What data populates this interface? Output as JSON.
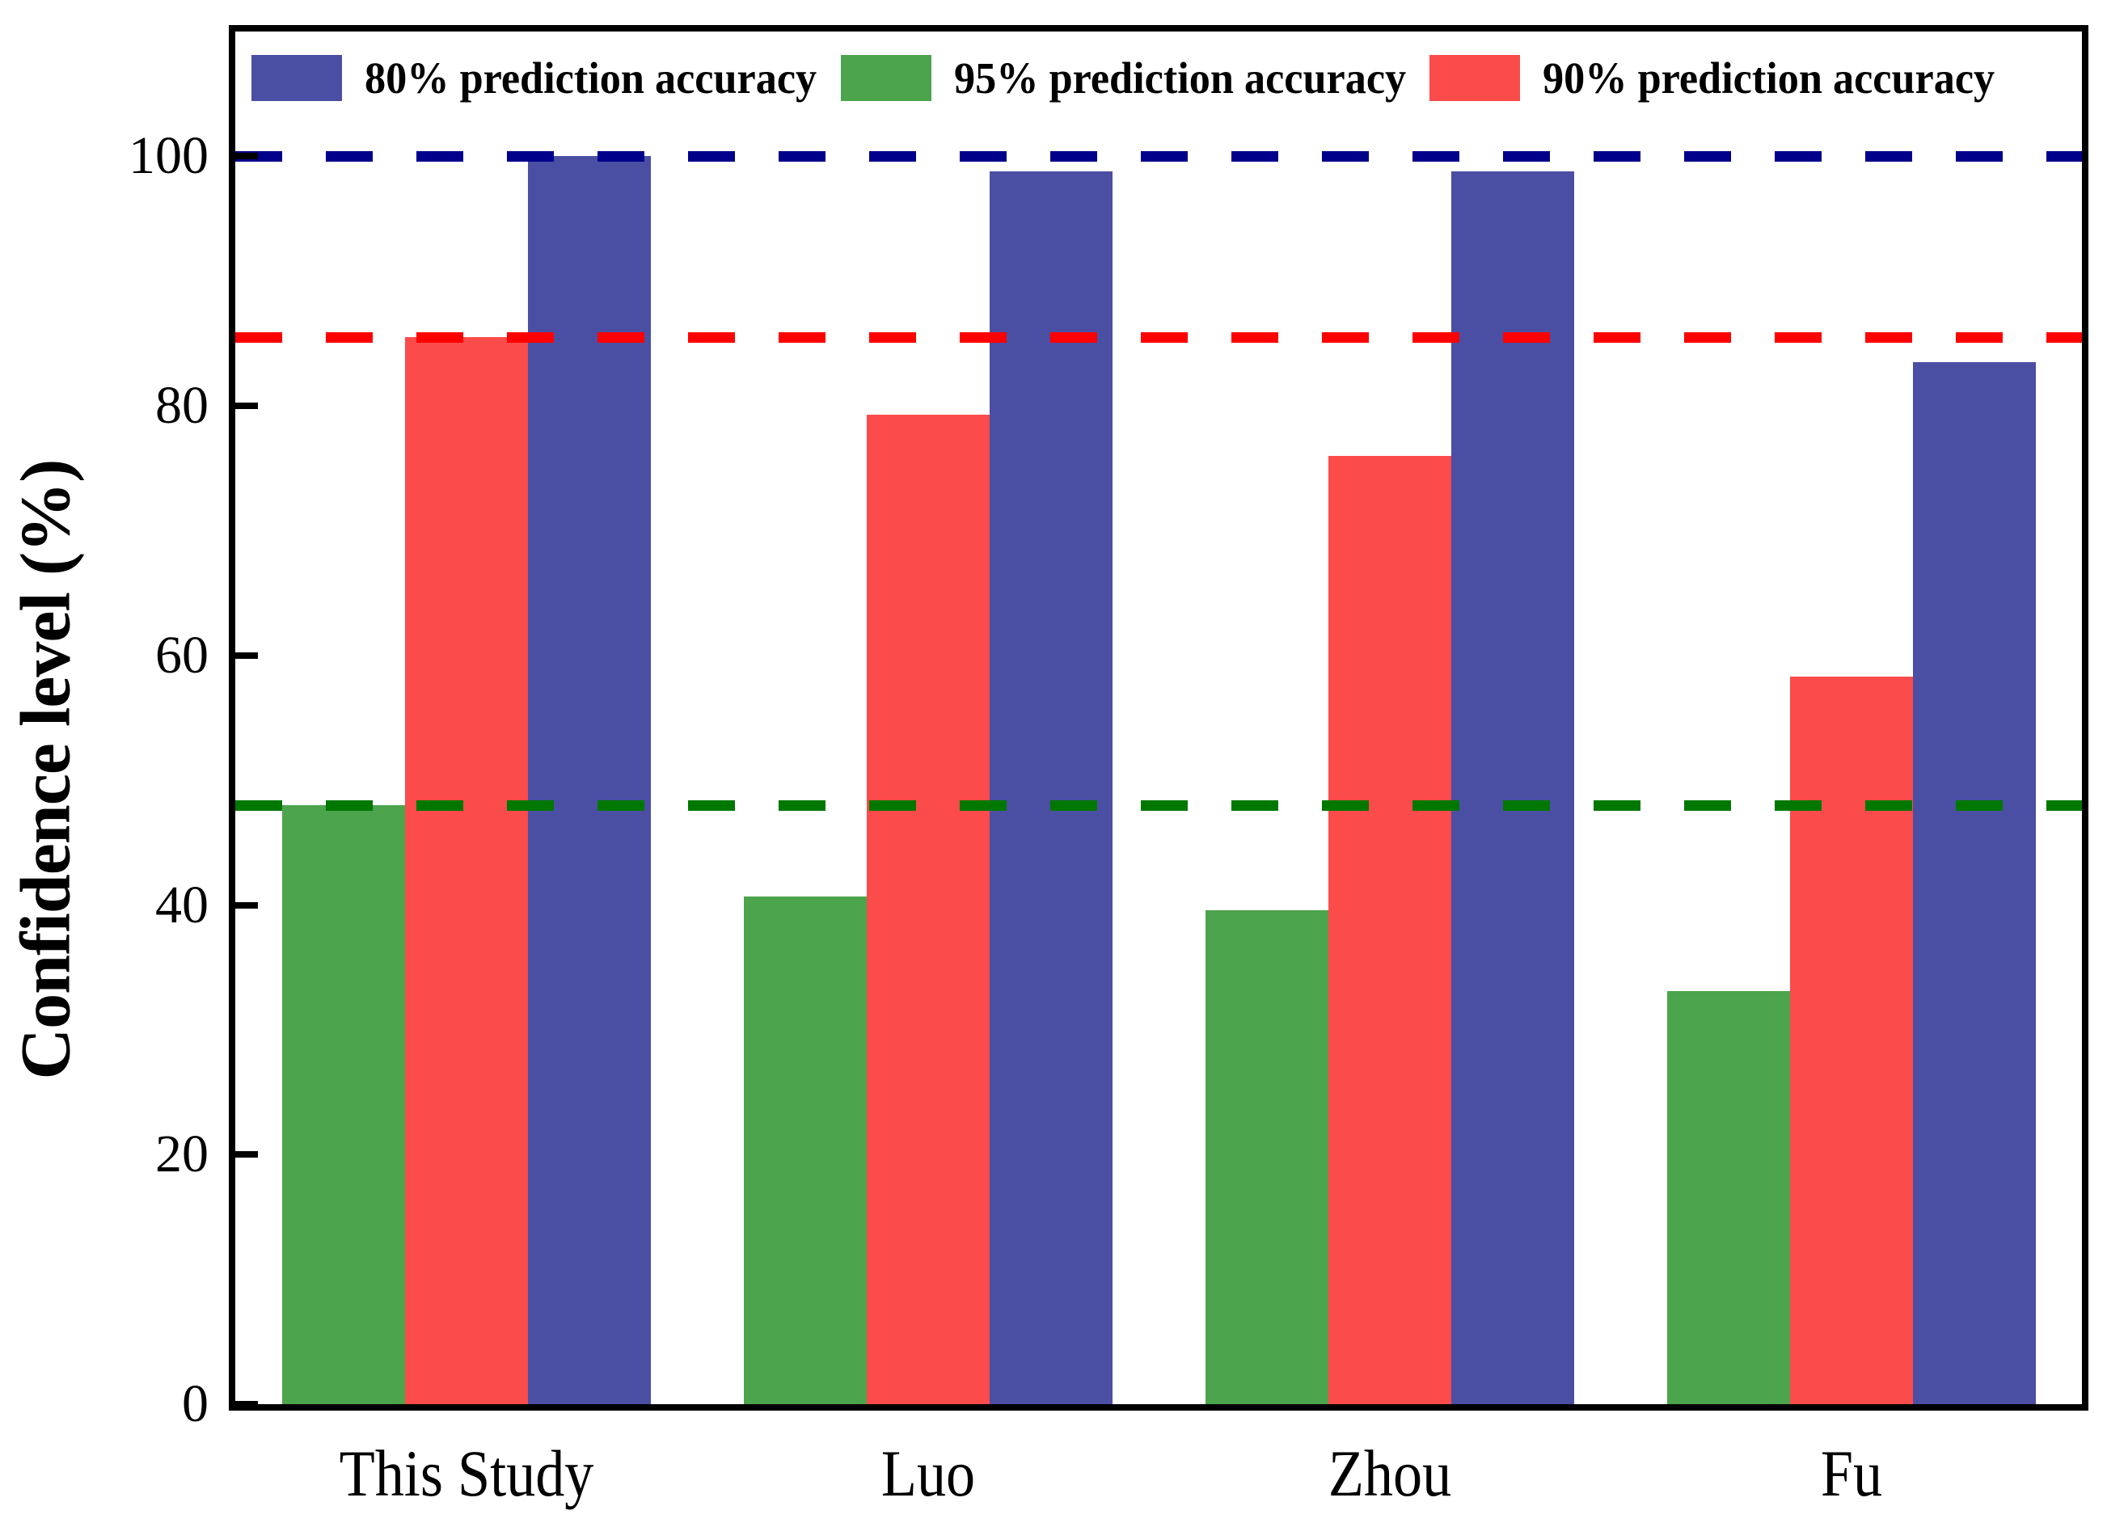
{
  "chart_data": {
    "type": "bar",
    "title": "",
    "xlabel": "",
    "ylabel": "Confidence level (%)",
    "categories": [
      "This Study",
      "Luo",
      "Zhou",
      "Fu"
    ],
    "series": [
      {
        "name": "95% prediction accuracy",
        "color": "#4CA44C",
        "values": [
          48.0,
          40.7,
          39.6,
          33.1
        ]
      },
      {
        "name": "90% prediction accuracy",
        "color": "#FB4B4B",
        "values": [
          85.5,
          79.3,
          76.0,
          58.3
        ]
      },
      {
        "name": "80% prediction accuracy",
        "color": "#4B4FA3",
        "values": [
          100.0,
          98.8,
          98.8,
          83.5
        ]
      }
    ],
    "legend": [
      {
        "label": "80% prediction accuracy",
        "color": "#4B4FA3"
      },
      {
        "label": "95% prediction accuracy",
        "color": "#4CA44C"
      },
      {
        "label": "90% prediction accuracy",
        "color": "#FB4B4B"
      }
    ],
    "legend_position": "top-inside",
    "reference_lines": [
      {
        "value": 100.0,
        "color": "#00008B",
        "style": "dashed"
      },
      {
        "value": 85.5,
        "color": "#FF0000",
        "style": "dashed"
      },
      {
        "value": 48.0,
        "color": "#007800",
        "style": "dashed"
      }
    ],
    "ylim": [
      0,
      110
    ],
    "yticks": [
      0,
      20,
      40,
      60,
      80,
      100
    ],
    "grid": false,
    "axis_color": "#000000"
  }
}
